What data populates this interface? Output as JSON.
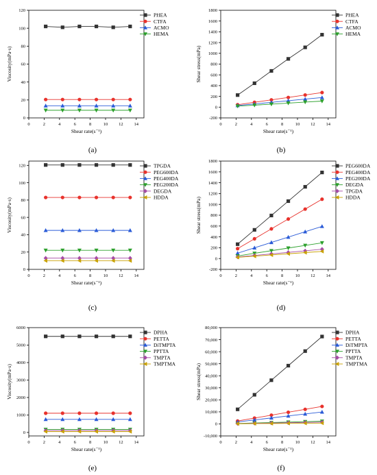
{
  "chart_data": [
    {
      "type": "line",
      "panel_label": "(a)",
      "xlabel": "Shear rate(s⁻¹)",
      "ylabel": "Viscosity(mPa·s)",
      "xlim": [
        0,
        15
      ],
      "ylim": [
        0,
        120
      ],
      "xticks": [
        "0",
        "2",
        "4",
        "6",
        "8",
        "10",
        "12",
        "14"
      ],
      "yticks": [
        "0",
        "20",
        "40",
        "60",
        "80",
        "100",
        "120"
      ],
      "legend_position": "top-right",
      "x": [
        2.2,
        4.4,
        6.6,
        8.8,
        11.0,
        13.2
      ],
      "series": [
        {
          "name": "PHEA",
          "color": "#333333",
          "marker": "square",
          "values": [
            102,
            101,
            102,
            102,
            101,
            102
          ]
        },
        {
          "name": "CTFA",
          "color": "#e8322c",
          "marker": "circle",
          "values": [
            20.5,
            20.5,
            20.5,
            20.5,
            20.5,
            20.5
          ]
        },
        {
          "name": "ACMO",
          "color": "#2a5bd7",
          "marker": "triangle",
          "values": [
            13.5,
            13.5,
            13.5,
            13.5,
            13.5,
            13.5
          ]
        },
        {
          "name": "HEMA",
          "color": "#2ca02c",
          "marker": "tri-down",
          "values": [
            8.5,
            8.5,
            8.5,
            8.5,
            8.5,
            8.5
          ]
        }
      ]
    },
    {
      "type": "line",
      "panel_label": "(b)",
      "xlabel": "Shear rate(s⁻¹)",
      "ylabel": "Shear stress(mPa)",
      "xlim": [
        0,
        15
      ],
      "ylim": [
        -200,
        1800
      ],
      "xticks": [
        "0",
        "2",
        "4",
        "6",
        "8",
        "10",
        "12",
        "14"
      ],
      "yticks": [
        "-200",
        "0",
        "200",
        "400",
        "600",
        "800",
        "1000",
        "1200",
        "1400",
        "1600",
        "1800"
      ],
      "legend_position": "top-right",
      "x": [
        2.2,
        4.4,
        6.6,
        8.8,
        11.0,
        13.2
      ],
      "series": [
        {
          "name": "PHEA",
          "color": "#333333",
          "marker": "square",
          "values": [
            224,
            444,
            673,
            897,
            1111,
            1346
          ]
        },
        {
          "name": "CTFA",
          "color": "#e8322c",
          "marker": "circle",
          "values": [
            45,
            90,
            135,
            180,
            226,
            271
          ]
        },
        {
          "name": "ACMO",
          "color": "#2a5bd7",
          "marker": "triangle",
          "values": [
            30,
            59,
            89,
            119,
            149,
            178
          ]
        },
        {
          "name": "HEMA",
          "color": "#2ca02c",
          "marker": "tri-down",
          "values": [
            19,
            37,
            56,
            75,
            94,
            112
          ]
        }
      ]
    },
    {
      "type": "line",
      "panel_label": "(c)",
      "xlabel": "Shear rate(s⁻¹)",
      "ylabel": "Viscosity(mPa·s)",
      "xlim": [
        0,
        15
      ],
      "ylim": [
        0,
        125
      ],
      "xticks": [
        "0",
        "2",
        "4",
        "6",
        "8",
        "10",
        "12",
        "14"
      ],
      "yticks": [
        "0",
        "20",
        "40",
        "60",
        "80",
        "100",
        "120"
      ],
      "legend_position": "top-right",
      "x": [
        2.2,
        4.4,
        6.6,
        8.8,
        11.0,
        13.2
      ],
      "series": [
        {
          "name": "TPGDA",
          "color": "#333333",
          "marker": "square",
          "values": [
            120.5,
            120.5,
            120.5,
            120.5,
            120.5,
            120.5
          ]
        },
        {
          "name": "PEG600DA",
          "color": "#e8322c",
          "marker": "circle",
          "values": [
            83,
            83,
            83,
            83,
            83,
            83
          ]
        },
        {
          "name": "PEG400DA",
          "color": "#2a5bd7",
          "marker": "triangle",
          "values": [
            45,
            45,
            45,
            45,
            45,
            45
          ]
        },
        {
          "name": "PEG200DA",
          "color": "#2ca02c",
          "marker": "tri-down",
          "values": [
            22,
            22,
            22,
            22,
            22,
            22
          ]
        },
        {
          "name": "DEGDA",
          "color": "#a64ca6",
          "marker": "diamond",
          "values": [
            13,
            13,
            13,
            13,
            13,
            13
          ]
        },
        {
          "name": "HDDA",
          "color": "#c8a000",
          "marker": "tri-left",
          "values": [
            10,
            10,
            10,
            10,
            10,
            10
          ]
        }
      ]
    },
    {
      "type": "line",
      "panel_label": "(d)",
      "xlabel": "Shear rate(s⁻¹)",
      "ylabel": "Shear stress(mPa)",
      "xlim": [
        0,
        15
      ],
      "ylim": [
        -200,
        1800
      ],
      "xticks": [
        "0",
        "2",
        "4",
        "6",
        "8",
        "10",
        "12",
        "14"
      ],
      "yticks": [
        "-200",
        "0",
        "200",
        "400",
        "600",
        "800",
        "1000",
        "1200",
        "1400",
        "1600",
        "1800"
      ],
      "legend_position": "top-right",
      "x": [
        2.2,
        4.4,
        6.6,
        8.8,
        11.0,
        13.2
      ],
      "series": [
        {
          "name": "PEG600DA",
          "color": "#333333",
          "marker": "square",
          "values": [
            265,
            530,
            795,
            1060,
            1325,
            1590
          ]
        },
        {
          "name": "PEG400DA",
          "color": "#e8322c",
          "marker": "circle",
          "values": [
            183,
            365,
            548,
            730,
            913,
            1096
          ]
        },
        {
          "name": "PEG200DA",
          "color": "#2a5bd7",
          "marker": "triangle",
          "values": [
            99,
            198,
            297,
            396,
            495,
            594
          ]
        },
        {
          "name": "DEGDA",
          "color": "#2ca02c",
          "marker": "tri-down",
          "values": [
            48,
            97,
            145,
            194,
            242,
            290
          ]
        },
        {
          "name": "TPGDA",
          "color": "#a64ca6",
          "marker": "diamond",
          "values": [
            29,
            57,
            86,
            114,
            143,
            172
          ]
        },
        {
          "name": "HDDA",
          "color": "#c8a000",
          "marker": "tri-left",
          "values": [
            22,
            44,
            66,
            88,
            110,
            132
          ]
        }
      ]
    },
    {
      "type": "line",
      "panel_label": "(e)",
      "xlabel": "Shear rate(s⁻¹)",
      "ylabel": "Viscosity(mPa·s)",
      "xlim": [
        0,
        15
      ],
      "ylim": [
        -200,
        6000
      ],
      "xticks": [
        "0",
        "2",
        "4",
        "6",
        "8",
        "10",
        "12",
        "14"
      ],
      "yticks": [
        "0",
        "1000",
        "2000",
        "3000",
        "4000",
        "5000",
        "6000"
      ],
      "legend_position": "top-right",
      "x": [
        2.2,
        4.4,
        6.6,
        8.8,
        11.0,
        13.2
      ],
      "series": [
        {
          "name": "DPHA",
          "color": "#333333",
          "marker": "square",
          "values": [
            5500,
            5500,
            5500,
            5500,
            5500,
            5500
          ]
        },
        {
          "name": "PETTA",
          "color": "#e8322c",
          "marker": "circle",
          "values": [
            1100,
            1100,
            1100,
            1100,
            1100,
            1100
          ]
        },
        {
          "name": "DiTMPTA",
          "color": "#2a5bd7",
          "marker": "triangle",
          "values": [
            750,
            750,
            750,
            750,
            750,
            750
          ]
        },
        {
          "name": "PPTTA",
          "color": "#2ca02c",
          "marker": "tri-down",
          "values": [
            170,
            170,
            170,
            170,
            170,
            170
          ]
        },
        {
          "name": "TMPTA",
          "color": "#a64ca6",
          "marker": "diamond",
          "values": [
            110,
            110,
            110,
            110,
            110,
            110
          ]
        },
        {
          "name": "TMPTMA",
          "color": "#c8a000",
          "marker": "tri-left",
          "values": [
            50,
            50,
            50,
            50,
            50,
            50
          ]
        }
      ]
    },
    {
      "type": "line",
      "panel_label": "(f)",
      "xlabel": "Shear rate(s⁻¹)",
      "ylabel": "Shear stress(mPa)",
      "xlim": [
        0,
        15
      ],
      "ylim": [
        -10000,
        80000
      ],
      "xticks": [
        "0",
        "2",
        "4",
        "6",
        "8",
        "10",
        "12",
        "14"
      ],
      "yticks": [
        "-10,000",
        "0",
        "10,000",
        "20,000",
        "30,000",
        "40,000",
        "50,000",
        "60,000",
        "70,000",
        "80,000"
      ],
      "legend_position": "top-right",
      "x": [
        2.2,
        4.4,
        6.6,
        8.8,
        11.0,
        13.2
      ],
      "series": [
        {
          "name": "DPHA",
          "color": "#333333",
          "marker": "square",
          "values": [
            12100,
            24200,
            36300,
            48400,
            60500,
            72600
          ]
        },
        {
          "name": "PETTA",
          "color": "#e8322c",
          "marker": "circle",
          "values": [
            2420,
            4840,
            7260,
            9680,
            12100,
            14520
          ]
        },
        {
          "name": "DiTMPTA",
          "color": "#2a5bd7",
          "marker": "triangle",
          "values": [
            1650,
            3300,
            4950,
            6600,
            8250,
            9900
          ]
        },
        {
          "name": "PPTTA",
          "color": "#2ca02c",
          "marker": "tri-down",
          "values": [
            374,
            748,
            1122,
            1496,
            1870,
            2244
          ]
        },
        {
          "name": "TMPTA",
          "color": "#a64ca6",
          "marker": "diamond",
          "values": [
            242,
            484,
            726,
            968,
            1210,
            1452
          ]
        },
        {
          "name": "TMPTMA",
          "color": "#c8a000",
          "marker": "tri-left",
          "values": [
            110,
            220,
            330,
            440,
            550,
            660
          ]
        }
      ]
    }
  ]
}
